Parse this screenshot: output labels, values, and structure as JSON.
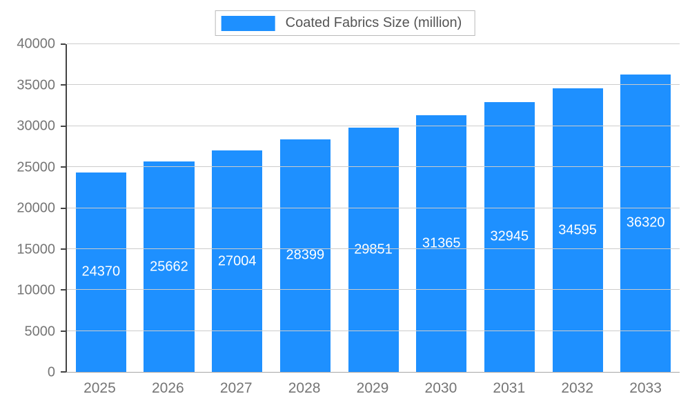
{
  "chart_data": {
    "type": "bar",
    "title": "",
    "legend": {
      "label": "Coated Fabrics Size (million)",
      "position": "top"
    },
    "categories": [
      "2025",
      "2026",
      "2027",
      "2028",
      "2029",
      "2030",
      "2031",
      "2032",
      "2033"
    ],
    "values": [
      24370,
      25662,
      27004,
      28399,
      29851,
      31365,
      32945,
      34595,
      36320
    ],
    "xlabel": "",
    "ylabel": "",
    "ylim": [
      0,
      40000
    ],
    "ytick_step": 5000,
    "yticks": [
      0,
      5000,
      10000,
      15000,
      20000,
      25000,
      30000,
      35000,
      40000
    ],
    "grid": true,
    "bar_value_labels": "inside-center"
  },
  "colors": {
    "bar": "#1e90ff",
    "grid": "#cccccc",
    "axis": "#424242",
    "tick_text": "#757575",
    "bar_label_text": "#ffffff",
    "legend_text": "#545454",
    "legend_border": "#b9b9b9",
    "background": "#ffffff"
  }
}
